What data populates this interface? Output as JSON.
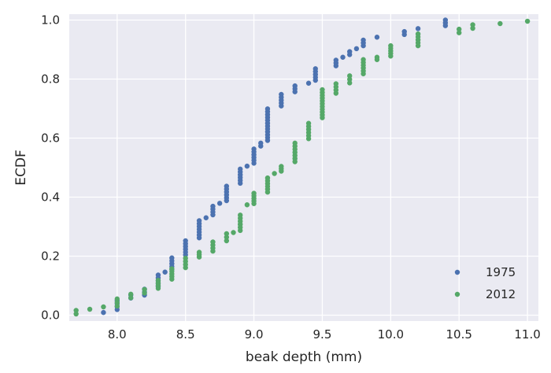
{
  "chart_data": {
    "type": "scatter",
    "title": "",
    "xlabel": "beak depth (mm)",
    "ylabel": "ECDF",
    "xlim": [
      7.65,
      11.08
    ],
    "ylim": [
      -0.02,
      1.02
    ],
    "xticks": [
      8.0,
      8.5,
      9.0,
      9.5,
      10.0,
      10.5,
      11.0
    ],
    "yticks": [
      0.0,
      0.2,
      0.4,
      0.6,
      0.8,
      1.0
    ],
    "xtick_labels": [
      "8.0",
      "8.5",
      "9.0",
      "9.5",
      "10.0",
      "10.5",
      "11.0"
    ],
    "ytick_labels": [
      "0.0",
      "0.2",
      "0.4",
      "0.6",
      "0.8",
      "1.0"
    ],
    "grid": true,
    "legend_position": "bottom-right",
    "background": "#eaeaf2",
    "series": [
      {
        "name": "1975",
        "color": "#4c72b0",
        "groups": [
          [
            7.9,
            0.009,
            0.009
          ],
          [
            8.0,
            0.019,
            0.049
          ],
          [
            8.1,
            0.058,
            0.068
          ],
          [
            8.2,
            0.068,
            0.088
          ],
          [
            8.3,
            0.097,
            0.136
          ],
          [
            8.35,
            0.146,
            0.146
          ],
          [
            8.4,
            0.155,
            0.194
          ],
          [
            8.5,
            0.204,
            0.252
          ],
          [
            8.6,
            0.262,
            0.32
          ],
          [
            8.65,
            0.33,
            0.33
          ],
          [
            8.7,
            0.34,
            0.369
          ],
          [
            8.75,
            0.379,
            0.379
          ],
          [
            8.8,
            0.388,
            0.437
          ],
          [
            8.9,
            0.447,
            0.495
          ],
          [
            8.95,
            0.505,
            0.505
          ],
          [
            9.0,
            0.515,
            0.563
          ],
          [
            9.05,
            0.573,
            0.583
          ],
          [
            9.1,
            0.592,
            0.699
          ],
          [
            9.2,
            0.709,
            0.748
          ],
          [
            9.3,
            0.757,
            0.777
          ],
          [
            9.4,
            0.786,
            0.786
          ],
          [
            9.45,
            0.796,
            0.835
          ],
          [
            9.6,
            0.845,
            0.864
          ],
          [
            9.65,
            0.874,
            0.874
          ],
          [
            9.7,
            0.883,
            0.893
          ],
          [
            9.75,
            0.903,
            0.903
          ],
          [
            9.8,
            0.913,
            0.932
          ],
          [
            9.9,
            0.942,
            0.942
          ],
          [
            10.1,
            0.951,
            0.961
          ],
          [
            10.2,
            0.971,
            0.971
          ],
          [
            10.4,
            0.981,
            1.0
          ]
        ]
      },
      {
        "name": "2012",
        "color": "#55a868",
        "groups": [
          [
            7.7,
            0.004,
            0.016
          ],
          [
            7.8,
            0.02,
            0.02
          ],
          [
            7.9,
            0.028,
            0.028
          ],
          [
            8.0,
            0.031,
            0.055
          ],
          [
            8.1,
            0.059,
            0.071
          ],
          [
            8.2,
            0.075,
            0.087
          ],
          [
            8.3,
            0.091,
            0.118
          ],
          [
            8.4,
            0.122,
            0.157
          ],
          [
            8.5,
            0.161,
            0.193
          ],
          [
            8.6,
            0.197,
            0.213
          ],
          [
            8.7,
            0.217,
            0.248
          ],
          [
            8.8,
            0.252,
            0.276
          ],
          [
            8.85,
            0.28,
            0.28
          ],
          [
            8.9,
            0.287,
            0.339
          ],
          [
            8.95,
            0.374,
            0.374
          ],
          [
            9.0,
            0.378,
            0.413
          ],
          [
            9.1,
            0.417,
            0.465
          ],
          [
            9.15,
            0.48,
            0.48
          ],
          [
            9.2,
            0.488,
            0.504
          ],
          [
            9.3,
            0.52,
            0.583
          ],
          [
            9.4,
            0.598,
            0.65
          ],
          [
            9.5,
            0.669,
            0.764
          ],
          [
            9.6,
            0.752,
            0.784
          ],
          [
            9.7,
            0.787,
            0.811
          ],
          [
            9.8,
            0.818,
            0.866
          ],
          [
            9.9,
            0.866,
            0.874
          ],
          [
            10.0,
            0.878,
            0.913
          ],
          [
            10.2,
            0.913,
            0.953
          ],
          [
            10.5,
            0.957,
            0.969
          ],
          [
            10.6,
            0.972,
            0.984
          ],
          [
            10.8,
            0.988,
            0.988
          ],
          [
            11.0,
            0.996,
            0.996
          ]
        ]
      }
    ]
  }
}
